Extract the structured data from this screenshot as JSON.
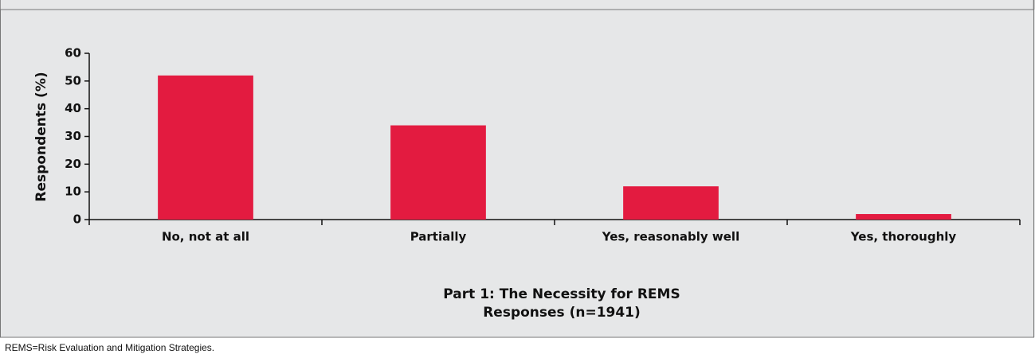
{
  "chart_data": {
    "type": "bar",
    "xlabel": [
      "Part 1: The Necessity for REMS",
      "Responses (n=1941)"
    ],
    "ylabel": "Respondents (%)",
    "categories": [
      "No, not at all",
      "Partially",
      "Yes, reasonably well",
      "Yes, thoroughly"
    ],
    "values": [
      52,
      34,
      12,
      2
    ],
    "color": "#e31b40",
    "ylim": [
      0,
      60
    ],
    "yticks": [
      0,
      10,
      20,
      30,
      40,
      50,
      60
    ],
    "grid": false
  },
  "footnote": "REMS=Risk Evaluation and Mitigation Strategies."
}
